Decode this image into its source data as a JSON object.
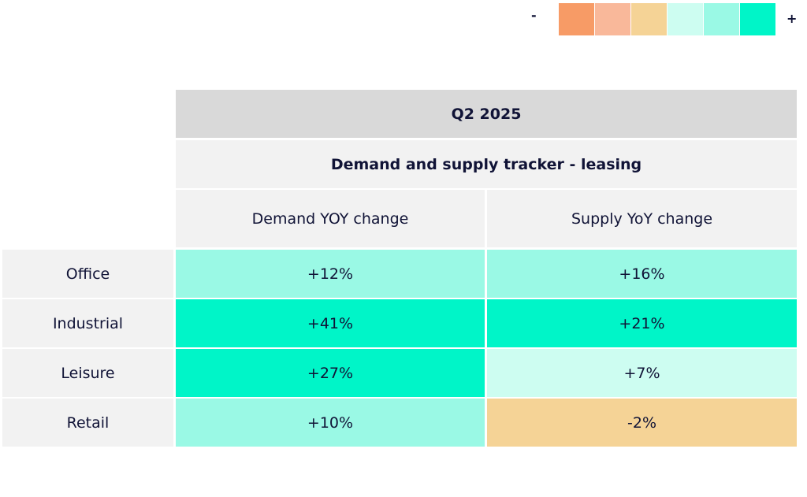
{
  "legend": {
    "minus_label": "-",
    "plus_label": "+",
    "colors": [
      "#f79b66",
      "#f9b89a",
      "#f5d396",
      "#cdfdf1",
      "#9af9e5",
      "#00f5c8"
    ]
  },
  "table": {
    "period": "Q2 2025",
    "title": "Demand and supply tracker - leasing",
    "columns": [
      "Demand YOY change",
      "Supply YoY change"
    ],
    "rows": [
      {
        "label": "Office",
        "demand": "+12%",
        "supply": "+16%",
        "demand_color": "#9af9e5",
        "supply_color": "#9af9e5"
      },
      {
        "label": "Industrial",
        "demand": "+41%",
        "supply": "+21%",
        "demand_color": "#00f5c8",
        "supply_color": "#00f5c8"
      },
      {
        "label": "Leisure",
        "demand": "+27%",
        "supply": "+7%",
        "demand_color": "#00f5c8",
        "supply_color": "#cdfdf1"
      },
      {
        "label": "Retail",
        "demand": "+10%",
        "supply": "-2%",
        "demand_color": "#9af9e5",
        "supply_color": "#f5d396"
      }
    ]
  },
  "chart_data": {
    "type": "table",
    "title": "Demand and supply tracker - leasing",
    "subtitle": "Q2 2025",
    "categories": [
      "Office",
      "Industrial",
      "Leisure",
      "Retail"
    ],
    "series": [
      {
        "name": "Demand YOY change",
        "values": [
          12,
          41,
          27,
          10
        ]
      },
      {
        "name": "Supply YoY change",
        "values": [
          16,
          21,
          7,
          -2
        ]
      }
    ],
    "unit": "%"
  }
}
